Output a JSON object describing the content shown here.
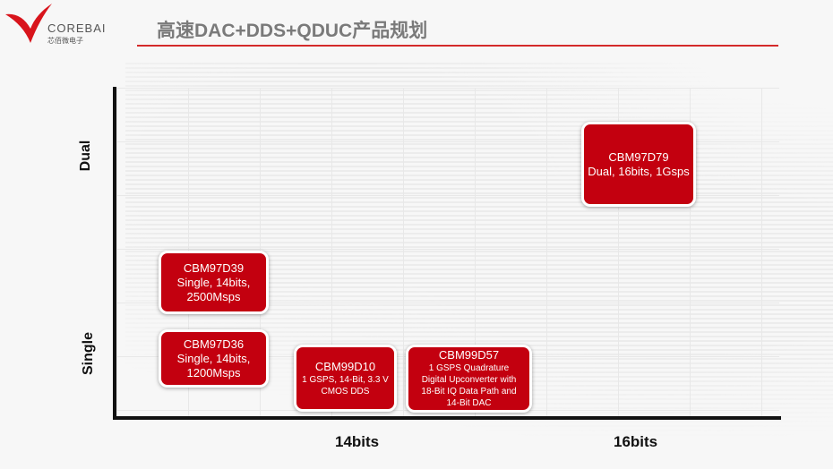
{
  "header": {
    "title": "高速DAC+DDS+QDUC产品规划",
    "logo_text": "COREBAI",
    "logo_cn": "芯佰微电子",
    "accent": "#d42a2a"
  },
  "axes": {
    "y_labels": [
      "Dual",
      "Single"
    ],
    "x_labels": [
      "14bits",
      "16bits"
    ]
  },
  "products": [
    {
      "name": "CBM97D79",
      "desc": [
        "Dual, 16bits, 1Gsps"
      ]
    },
    {
      "name": "CBM97D39",
      "desc": [
        "Single, 14bits,",
        "2500Msps"
      ]
    },
    {
      "name": "CBM97D36",
      "desc": [
        "Single, 14bits,",
        "1200Msps"
      ]
    },
    {
      "name": "CBM99D10",
      "desc": [
        "1 GSPS, 14-Bit, 3.3 V",
        "CMOS DDS"
      ]
    },
    {
      "name": "CBM99D57",
      "desc": [
        "1 GSPS Quadrature",
        "Digital Upconverter with",
        "18-Bit IQ Data Path and",
        "14-Bit DAC"
      ]
    }
  ],
  "box_color": "#c3000f"
}
